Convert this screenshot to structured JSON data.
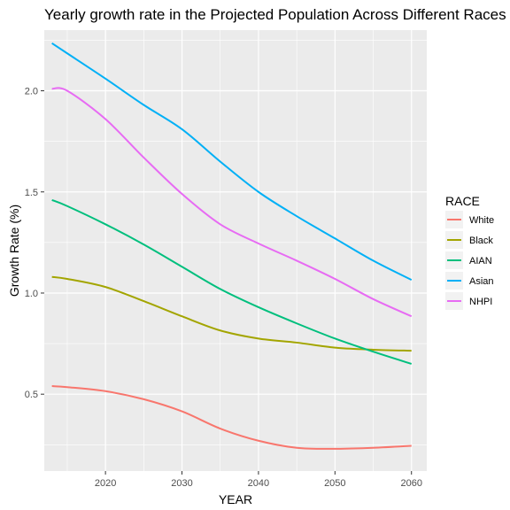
{
  "chart_data": {
    "type": "line",
    "title": "Yearly growth rate in the Projected Population Across Different Races",
    "xlabel": "YEAR",
    "ylabel": "Growth Rate (%)",
    "xlim": [
      2012,
      2062
    ],
    "ylim": [
      0.12,
      2.3
    ],
    "x_ticks": [
      2020,
      2030,
      2040,
      2050,
      2060
    ],
    "x_tick_labels": [
      "2020",
      "2030",
      "2040",
      "2050",
      "2060"
    ],
    "y_ticks": [
      0.5,
      1.0,
      1.5,
      2.0
    ],
    "y_tick_labels": [
      "0.5",
      "1.0",
      "1.5",
      "2.0"
    ],
    "grid": true,
    "panel_background": "#ebebeb",
    "legend": {
      "title": "RACE",
      "position": "right"
    },
    "x": [
      2013,
      2015,
      2020,
      2025,
      2030,
      2035,
      2040,
      2045,
      2050,
      2055,
      2060
    ],
    "series": [
      {
        "name": "White",
        "color": "#f8766d",
        "values": [
          0.54,
          0.535,
          0.515,
          0.475,
          0.415,
          0.33,
          0.27,
          0.235,
          0.23,
          0.235,
          0.245
        ]
      },
      {
        "name": "Black",
        "color": "#a3a500",
        "values": [
          1.08,
          1.07,
          1.03,
          0.96,
          0.885,
          0.815,
          0.775,
          0.755,
          0.73,
          0.72,
          0.715
        ]
      },
      {
        "name": "AIAN",
        "color": "#00bf7d",
        "values": [
          1.46,
          1.43,
          1.34,
          1.24,
          1.13,
          1.02,
          0.93,
          0.85,
          0.775,
          0.71,
          0.65
        ]
      },
      {
        "name": "Asian",
        "color": "#00b0f6",
        "values": [
          2.235,
          2.185,
          2.06,
          1.93,
          1.81,
          1.65,
          1.5,
          1.38,
          1.27,
          1.16,
          1.065
        ]
      },
      {
        "name": "NHPI",
        "color": "#e76bf3",
        "values": [
          2.01,
          2.0,
          1.86,
          1.67,
          1.49,
          1.34,
          1.245,
          1.16,
          1.07,
          0.97,
          0.885
        ]
      }
    ]
  }
}
